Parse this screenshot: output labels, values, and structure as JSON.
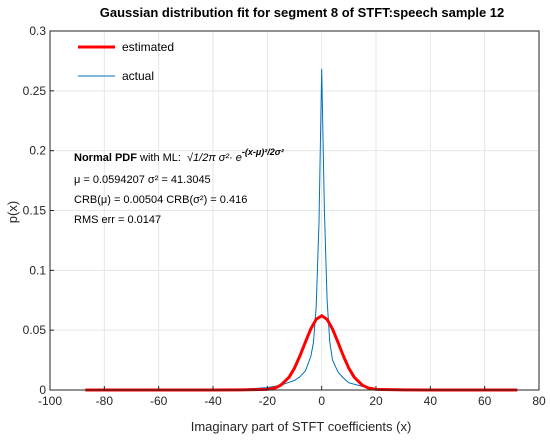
{
  "chart_data": {
    "type": "line",
    "title": "Gaussian distribution fit for segment 8 of STFT:speech sample 12",
    "xlabel": "Imaginary part of STFT coefficients (x)",
    "ylabel": "p(x)",
    "xlim": [
      -100,
      80
    ],
    "ylim": [
      0,
      0.3
    ],
    "xticks": [
      -100,
      -80,
      -60,
      -40,
      -20,
      0,
      20,
      40,
      60,
      80
    ],
    "yticks": [
      0,
      0.05,
      0.1,
      0.15,
      0.2,
      0.25,
      0.3
    ],
    "xtick_labels": [
      "-100",
      "-80",
      "-60",
      "-40",
      "-20",
      "0",
      "20",
      "40",
      "60",
      "80"
    ],
    "ytick_labels": [
      "0",
      "0.05",
      "0.1",
      "0.15",
      "0.2",
      "0.25",
      "0.3"
    ],
    "grid": true,
    "legend_position": "top-left",
    "series": [
      {
        "name": "estimated",
        "color": "#ff0000",
        "style": "thick-line",
        "x": [
          -87,
          -60,
          -40,
          -30,
          -25,
          -20,
          -17,
          -15,
          -12,
          -10,
          -8,
          -6,
          -4,
          -2,
          0,
          2,
          4,
          6,
          8,
          10,
          12,
          15,
          17,
          20,
          25,
          30,
          40,
          60,
          72
        ],
        "y": [
          0,
          0,
          0,
          0.0001,
          0.0003,
          0.0005,
          0.0018,
          0.0041,
          0.0107,
          0.0183,
          0.0285,
          0.04,
          0.0511,
          0.0591,
          0.0621,
          0.059,
          0.051,
          0.0399,
          0.0284,
          0.0182,
          0.0106,
          0.004,
          0.0018,
          0.0005,
          0.0003,
          0.0001,
          0,
          0,
          0
        ]
      },
      {
        "name": "actual",
        "color": "#0072bd",
        "style": "thin-line",
        "x": [
          -87,
          -40,
          -30,
          -20,
          -15,
          -10,
          -8,
          -6,
          -4,
          -3,
          -2,
          -1,
          0,
          1,
          2,
          3,
          4,
          6,
          8,
          10,
          15,
          20,
          30,
          40,
          72
        ],
        "y": [
          0,
          0,
          0.0005,
          0.002,
          0.004,
          0.008,
          0.011,
          0.016,
          0.028,
          0.04,
          0.07,
          0.14,
          0.268,
          0.15,
          0.075,
          0.04,
          0.025,
          0.015,
          0.01,
          0.006,
          0.003,
          0.001,
          0.0003,
          0,
          0
        ]
      }
    ],
    "annotation": {
      "line1_bold": "Normal PDF",
      "line1_rest": " with ML:",
      "line1_formula": "√1/2π σ²· e",
      "line1_exponent": "-(x-μ)²/2σ²",
      "line2": "μ = 0.0594207    σ² = 41.3045",
      "line3": "CRB(μ) = 0.00504  CRB(σ²) = 0.416",
      "line4": "RMS err = 0.0147"
    }
  }
}
